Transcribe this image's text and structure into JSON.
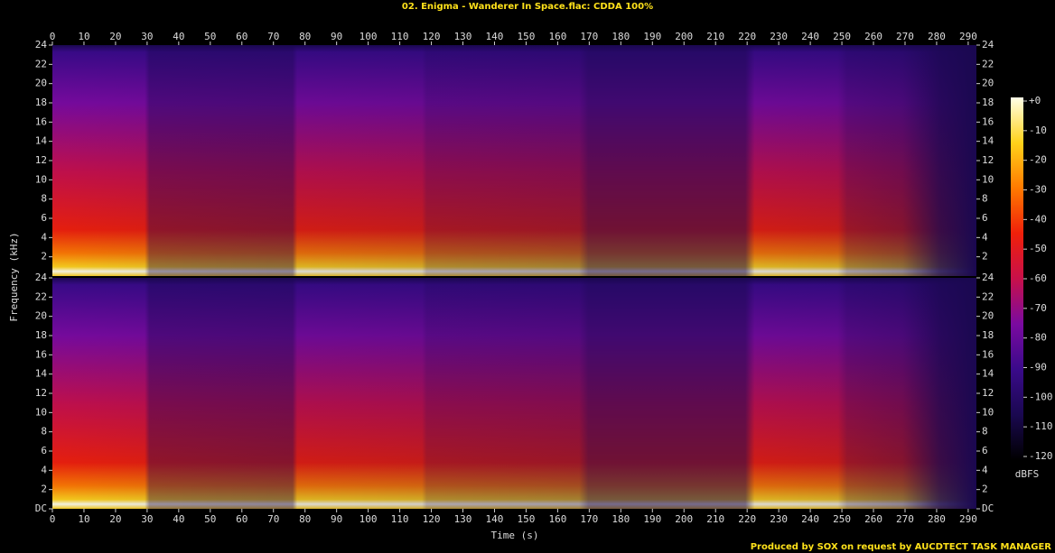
{
  "chart_data": {
    "type": "spectrogram",
    "title": "02. Enigma - Wanderer In Space.flac: CDDA 100%",
    "xlabel": "Time (s)",
    "ylabel": "Frequency (kHz)",
    "xlim": [
      0,
      292.6
    ],
    "xticks": [
      0,
      10,
      20,
      30,
      40,
      50,
      60,
      70,
      80,
      90,
      100,
      110,
      120,
      130,
      140,
      150,
      160,
      170,
      180,
      190,
      200,
      210,
      220,
      230,
      240,
      250,
      260,
      270,
      280,
      290
    ],
    "channels": [
      {
        "ylim": [
          0,
          24
        ],
        "yticks": [
          2,
          4,
          6,
          8,
          10,
          12,
          14,
          16,
          18,
          20,
          22,
          24
        ]
      },
      {
        "ylim": [
          0,
          24
        ],
        "yticks": [
          {
            "value": 0,
            "label": "DC"
          },
          2,
          4,
          6,
          8,
          10,
          12,
          14,
          16,
          18,
          20,
          22,
          24
        ]
      }
    ],
    "colorbar": {
      "label": "dBFS",
      "lim": [
        -120,
        0
      ],
      "ticks": [
        {
          "value": 0,
          "label": "+0"
        },
        -10,
        -20,
        -30,
        -40,
        -50,
        -60,
        -70,
        -80,
        -90,
        -100,
        -110,
        -120
      ],
      "colors": [
        "#000000",
        "#1a0850",
        "#3a0a8a",
        "#7a0aa0",
        "#c8104a",
        "#f0200a",
        "#ff7a00",
        "#ffd21a",
        "#ffffe8"
      ]
    },
    "footnote": "Produced by SOX on request by AUCDTECT TASK MANAGER"
  }
}
